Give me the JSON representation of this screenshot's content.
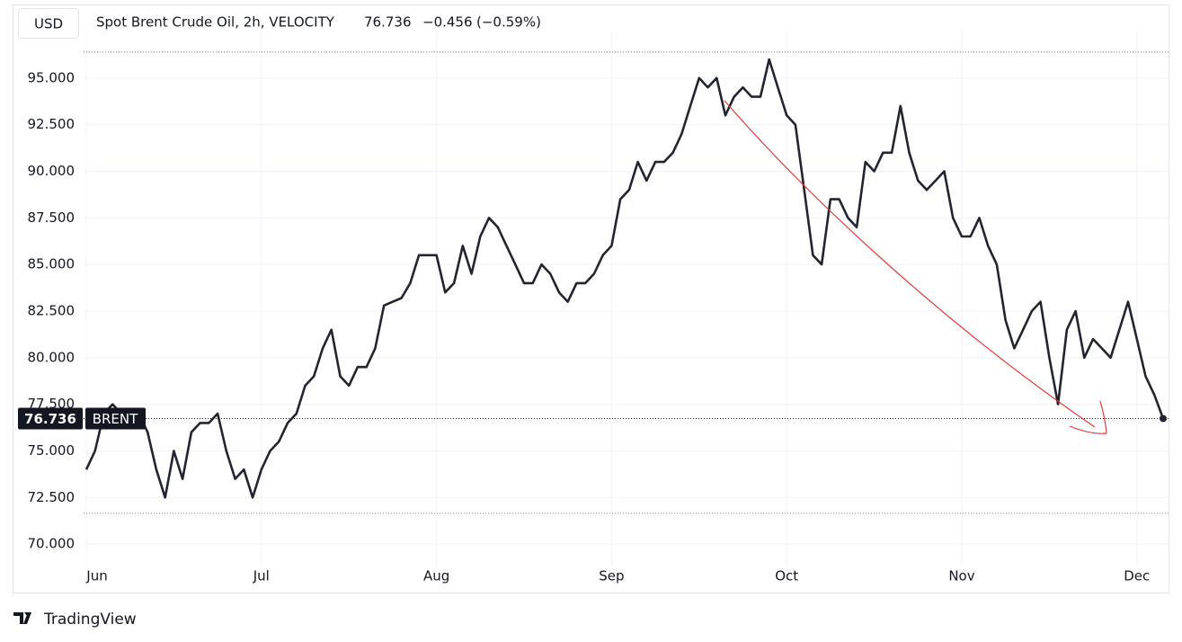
{
  "currency": "USD",
  "symbol": "Spot Brent Crude Oil, 2h, VELOCITY",
  "change": "−0.456",
  "change_pct": "(−0.59%)",
  "price_tag": "BRENT",
  "branding": "TradingView",
  "chart_data": {
    "type": "line",
    "categories": [
      "Jun",
      null,
      null,
      null,
      null,
      null,
      null,
      null,
      null,
      null,
      null,
      null,
      null,
      null,
      null,
      null,
      null,
      null,
      null,
      null,
      "Jul",
      null,
      null,
      null,
      null,
      null,
      null,
      null,
      null,
      null,
      null,
      null,
      null,
      null,
      null,
      null,
      null,
      null,
      null,
      null,
      "Aug",
      null,
      null,
      null,
      null,
      null,
      null,
      null,
      null,
      null,
      null,
      null,
      null,
      null,
      null,
      null,
      null,
      null,
      null,
      null,
      "Sep",
      null,
      null,
      null,
      null,
      null,
      null,
      null,
      null,
      null,
      null,
      null,
      null,
      null,
      null,
      null,
      null,
      null,
      null,
      null,
      "Oct",
      null,
      null,
      null,
      null,
      null,
      null,
      null,
      null,
      null,
      null,
      null,
      null,
      null,
      null,
      null,
      null,
      null,
      null,
      null,
      "Nov",
      null,
      null,
      null,
      null,
      null,
      null,
      null,
      null,
      null,
      null,
      null,
      null,
      null,
      null,
      null,
      null,
      null,
      null,
      null,
      "Dec",
      null,
      null,
      null
    ],
    "series": [
      {
        "name": "BRENT",
        "color": "#22252f",
        "values": [
          74,
          75,
          77,
          77.5,
          77,
          76.5,
          77,
          76,
          74,
          72.5,
          75,
          73.5,
          76,
          76.5,
          76.5,
          77,
          75,
          73.5,
          74,
          72.5,
          74,
          75,
          75.5,
          76.5,
          77,
          78.5,
          79,
          80.5,
          81.5,
          79,
          78.5,
          79.5,
          79.5,
          80.5,
          82.8,
          83,
          83.2,
          84,
          85.5,
          85.5,
          85.5,
          83.5,
          84,
          86,
          84.5,
          86.5,
          87.5,
          87,
          86,
          85,
          84,
          84,
          85,
          84.5,
          83.5,
          83,
          84,
          84,
          84.5,
          85.5,
          86,
          88.5,
          89,
          90.5,
          89.5,
          90.5,
          90.5,
          91,
          92,
          93.5,
          95,
          94.5,
          95,
          93,
          94,
          94.5,
          94,
          94,
          96,
          94.5,
          93,
          92.5,
          89,
          85.5,
          85,
          88.5,
          88.5,
          87.5,
          87,
          90.5,
          90,
          91,
          91,
          93.5,
          91,
          89.5,
          89,
          89.5,
          90,
          87.5,
          86.5,
          86.5,
          87.5,
          86,
          85,
          82,
          80.5,
          81.5,
          82.5,
          83,
          80,
          77.5,
          81.5,
          82.5,
          80,
          81,
          80.5,
          80,
          81.5,
          83,
          81,
          79,
          78,
          76.736
        ]
      }
    ],
    "high_low": [
      96.4,
      71.65
    ],
    "ylim": [
      68.8,
      97.5
    ],
    "yticks": [
      {
        "value": 70,
        "label": "70.000"
      },
      {
        "value": 72.5,
        "label": "72.500"
      },
      {
        "value": 75,
        "label": "75.000"
      },
      {
        "value": 77.5,
        "label": "77.500"
      },
      {
        "value": 80,
        "label": "80.000"
      },
      {
        "value": 82.5,
        "label": "82.500"
      },
      {
        "value": 85,
        "label": "85.000"
      },
      {
        "value": 87.5,
        "label": "87.500"
      },
      {
        "value": 90,
        "label": "90.000"
      },
      {
        "value": 92.5,
        "label": "92.500"
      },
      {
        "value": 95,
        "label": "95.000"
      }
    ],
    "grid": true
  }
}
